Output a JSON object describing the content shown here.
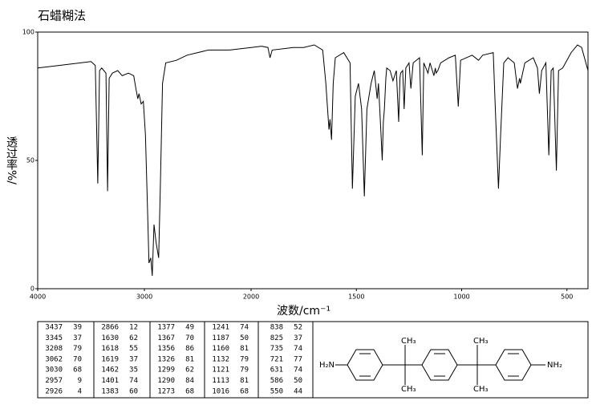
{
  "chart_data": {
    "type": "line",
    "title": "石蜡糊法",
    "xlabel": "波数/cm⁻¹",
    "ylabel": "透过率%/",
    "xlim": [
      4000,
      400
    ],
    "x_scale_break": 2000,
    "xticks": [
      4000,
      3000,
      2000,
      1500,
      1000,
      500
    ],
    "ylim": [
      0,
      100
    ],
    "yticks": [
      0,
      50,
      100
    ],
    "color": "#000000",
    "x": [
      4000,
      3800,
      3600,
      3500,
      3460,
      3437,
      3420,
      3400,
      3360,
      3345,
      3330,
      3300,
      3250,
      3208,
      3150,
      3100,
      3080,
      3062,
      3050,
      3030,
      3010,
      2990,
      2970,
      2957,
      2940,
      2926,
      2910,
      2890,
      2866,
      2850,
      2830,
      2800,
      2700,
      2600,
      2500,
      2400,
      2200,
      2000,
      1950,
      1920,
      1910,
      1900,
      1800,
      1750,
      1700,
      1660,
      1645,
      1630,
      1625,
      1618,
      1610,
      1600,
      1560,
      1530,
      1519,
      1505,
      1490,
      1475,
      1462,
      1450,
      1430,
      1415,
      1401,
      1395,
      1383,
      1377,
      1372,
      1367,
      1360,
      1356,
      1340,
      1326,
      1310,
      1299,
      1293,
      1290,
      1280,
      1273,
      1265,
      1250,
      1241,
      1230,
      1200,
      1187,
      1180,
      1160,
      1150,
      1132,
      1125,
      1121,
      1113,
      1100,
      1060,
      1030,
      1016,
      1005,
      950,
      920,
      900,
      850,
      840,
      825,
      815,
      800,
      780,
      750,
      735,
      725,
      721,
      700,
      660,
      640,
      631,
      620,
      600,
      586,
      575,
      565,
      550,
      540,
      520,
      480,
      450,
      430,
      400
    ],
    "values": [
      86,
      87,
      88,
      88.5,
      87,
      41,
      85,
      86,
      84,
      38,
      82,
      84,
      85,
      83,
      84,
      83,
      78,
      74,
      76,
      72,
      73,
      60,
      30,
      10,
      12,
      5,
      25,
      18,
      12,
      40,
      80,
      88,
      89,
      91,
      92,
      93,
      93,
      94,
      94.5,
      94,
      90,
      93,
      94,
      94,
      95,
      93,
      80,
      62,
      66,
      58,
      80,
      90,
      92,
      88,
      39,
      75,
      80,
      70,
      36,
      70,
      80,
      85,
      74,
      80,
      60,
      50,
      65,
      70,
      82,
      86,
      85,
      81,
      85,
      65,
      82,
      84,
      85,
      70,
      86,
      88,
      78,
      88,
      90,
      52,
      88,
      84,
      88,
      83,
      86,
      84,
      85,
      88,
      90,
      91,
      71,
      89,
      91,
      89,
      91,
      92,
      70,
      39,
      60,
      88,
      90,
      88,
      78,
      82,
      80,
      88,
      90,
      86,
      76,
      85,
      88,
      52,
      85,
      86,
      46,
      85,
      86,
      92,
      95,
      94,
      85
    ]
  },
  "peak_table": {
    "columns": [
      [
        [
          3437,
          39
        ],
        [
          3345,
          37
        ],
        [
          3208,
          79
        ],
        [
          3062,
          70
        ],
        [
          3030,
          68
        ],
        [
          2957,
          9
        ],
        [
          2926,
          4
        ]
      ],
      [
        [
          2866,
          12
        ],
        [
          1630,
          62
        ],
        [
          1618,
          55
        ],
        [
          1619,
          37
        ],
        [
          1462,
          35
        ],
        [
          1401,
          74
        ],
        [
          1383,
          60
        ]
      ],
      [
        [
          1377,
          49
        ],
        [
          1367,
          70
        ],
        [
          1356,
          86
        ],
        [
          1326,
          81
        ],
        [
          1299,
          62
        ],
        [
          1290,
          84
        ],
        [
          1273,
          68
        ]
      ],
      [
        [
          1241,
          74
        ],
        [
          1187,
          50
        ],
        [
          1160,
          81
        ],
        [
          1132,
          79
        ],
        [
          1121,
          79
        ],
        [
          1113,
          81
        ],
        [
          1016,
          68
        ]
      ],
      [
        [
          838,
          52
        ],
        [
          825,
          37
        ],
        [
          735,
          74
        ],
        [
          721,
          77
        ],
        [
          631,
          74
        ],
        [
          586,
          50
        ],
        [
          550,
          44
        ]
      ]
    ]
  },
  "structure": {
    "labels": [
      "H₂N",
      "CH₃",
      "CH₃",
      "CH₃",
      "CH₃",
      "NH₂"
    ]
  }
}
